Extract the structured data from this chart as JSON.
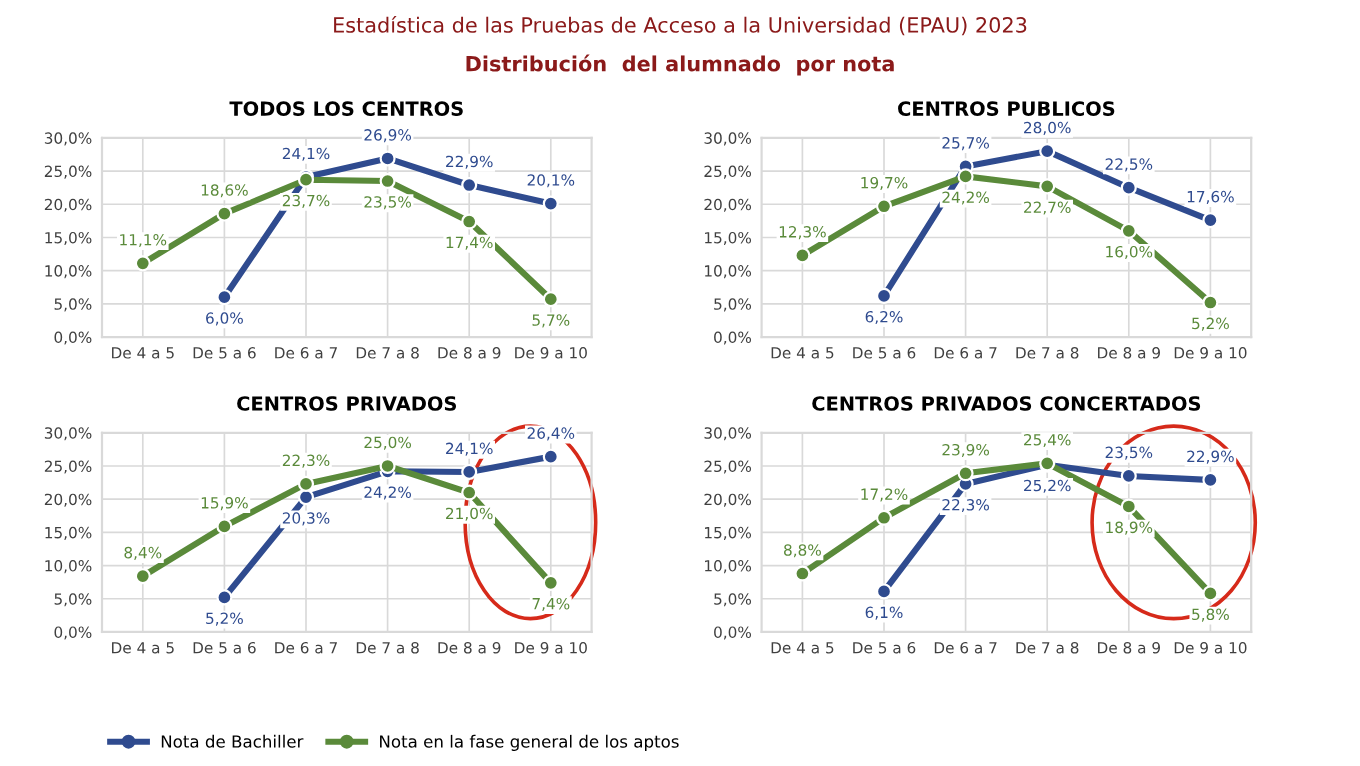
{
  "chart_data": [
    {
      "type": "line",
      "title": "TODOS LOS CENTROS",
      "annotations": [
        "Estadística de las Pruebas de Acceso a la Universidad (EPAU) 2023",
        "Distribución  del alumnado  por nota"
      ],
      "categories": [
        "De 4 a 5",
        "De 5 a 6",
        "De 6 a 7",
        "De 7 a 8",
        "De 8 a 9",
        "De 9 a 10"
      ],
      "ylim": [
        0,
        30
      ],
      "yticks": [
        {
          "value": 0,
          "label": "0,0%"
        },
        {
          "value": 5,
          "label": "5,0%"
        },
        {
          "value": 10,
          "label": "10,0%"
        },
        {
          "value": 15,
          "label": "15,0%"
        },
        {
          "value": 20,
          "label": "20,0%"
        },
        {
          "value": 25,
          "label": "25,0%"
        },
        {
          "value": 30,
          "label": "30,0%"
        }
      ],
      "grid": true,
      "marker": "circle",
      "legend": "bottom",
      "series": [
        {
          "name": "Nota de Bachiller",
          "color": "#2f4b8f",
          "values": [
            null,
            6.0,
            24.1,
            26.9,
            22.9,
            20.1
          ],
          "value_labels": [
            null,
            "6,0%",
            "24,1%",
            "26,9%",
            "22,9%",
            "20,1%"
          ]
        },
        {
          "name": "Nota en la fase general de los aptos",
          "color": "#5a8a3a",
          "values": [
            11.1,
            18.6,
            23.7,
            23.5,
            17.4,
            5.7
          ],
          "value_labels": [
            "11,1%",
            "18,6%",
            "23,7%",
            "23,5%",
            "17,4%",
            "5,7%"
          ]
        }
      ]
    },
    {
      "type": "line",
      "title": "CENTROS PUBLICOS",
      "categories": [
        "De 4 a 5",
        "De 5 a 6",
        "De 6 a 7",
        "De 7 a 8",
        "De 8 a 9",
        "De 9 a 10"
      ],
      "ylim": [
        0,
        30
      ],
      "yticks": [
        {
          "value": 0,
          "label": "0,0%"
        },
        {
          "value": 5,
          "label": "5,0%"
        },
        {
          "value": 10,
          "label": "10,0%"
        },
        {
          "value": 15,
          "label": "15,0%"
        },
        {
          "value": 20,
          "label": "20,0%"
        },
        {
          "value": 25,
          "label": "25,0%"
        },
        {
          "value": 30,
          "label": "30,0%"
        }
      ],
      "grid": true,
      "marker": "circle",
      "series": [
        {
          "color": "#2f4b8f",
          "values": [
            null,
            6.2,
            25.7,
            28.0,
            22.5,
            17.6
          ],
          "value_labels": [
            null,
            "6,2%",
            "25,7%",
            "28,0%",
            "22,5%",
            "17,6%"
          ]
        },
        {
          "color": "#5a8a3a",
          "values": [
            12.3,
            19.7,
            24.2,
            22.7,
            16.0,
            5.2
          ],
          "value_labels": [
            "12,3%",
            "19,7%",
            "24,2%",
            "22,7%",
            "16,0%",
            "5,2%"
          ]
        }
      ]
    },
    {
      "type": "line",
      "title": "CENTROS PRIVADOS",
      "categories": [
        "De 4 a 5",
        "De 5 a 6",
        "De 6 a 7",
        "De 7 a 8",
        "De 8 a 9",
        "De 9 a 10"
      ],
      "ylim": [
        0,
        30
      ],
      "yticks": [
        {
          "value": 0,
          "label": "0,0%"
        },
        {
          "value": 5,
          "label": "5,0%"
        },
        {
          "value": 10,
          "label": "10,0%"
        },
        {
          "value": 15,
          "label": "15,0%"
        },
        {
          "value": 20,
          "label": "20,0%"
        },
        {
          "value": 25,
          "label": "25,0%"
        },
        {
          "value": 30,
          "label": "30,0%"
        }
      ],
      "grid": true,
      "marker": "circle",
      "series": [
        {
          "color": "#2f4b8f",
          "values": [
            null,
            5.2,
            20.3,
            24.2,
            24.1,
            26.4
          ],
          "value_labels": [
            null,
            "5,2%",
            "20,3%",
            "24,2%",
            "24,1%",
            "26,4%"
          ]
        },
        {
          "color": "#5a8a3a",
          "values": [
            8.4,
            15.9,
            22.3,
            25.0,
            21.0,
            7.4
          ],
          "value_labels": [
            "8,4%",
            "15,9%",
            "22,3%",
            "25,0%",
            "21,0%",
            "7,4%"
          ]
        }
      ]
    },
    {
      "type": "line",
      "title": "CENTROS PRIVADOS CONCERTADOS",
      "categories": [
        "De 4 a 5",
        "De 5 a 6",
        "De 6 a 7",
        "De 7 a 8",
        "De 8 a 9",
        "De 9 a 10"
      ],
      "ylim": [
        0,
        30
      ],
      "yticks": [
        {
          "value": 0,
          "label": "0,0%"
        },
        {
          "value": 5,
          "label": "5,0%"
        },
        {
          "value": 10,
          "label": "10,0%"
        },
        {
          "value": 15,
          "label": "15,0%"
        },
        {
          "value": 20,
          "label": "20,0%"
        },
        {
          "value": 25,
          "label": "25,0%"
        },
        {
          "value": 30,
          "label": "30,0%"
        }
      ],
      "grid": true,
      "marker": "circle",
      "series": [
        {
          "color": "#2f4b8f",
          "values": [
            null,
            6.1,
            22.3,
            25.2,
            23.5,
            22.9
          ],
          "value_labels": [
            null,
            "6,1%",
            "22,3%",
            "25,2%",
            "23,5%",
            "22,9%"
          ]
        },
        {
          "color": "#5a8a3a",
          "values": [
            8.8,
            17.2,
            23.9,
            25.4,
            18.9,
            5.8
          ],
          "value_labels": [
            "8,8%",
            "17,2%",
            "23,9%",
            "25,4%",
            "18,9%",
            "5,8%"
          ]
        }
      ]
    }
  ]
}
